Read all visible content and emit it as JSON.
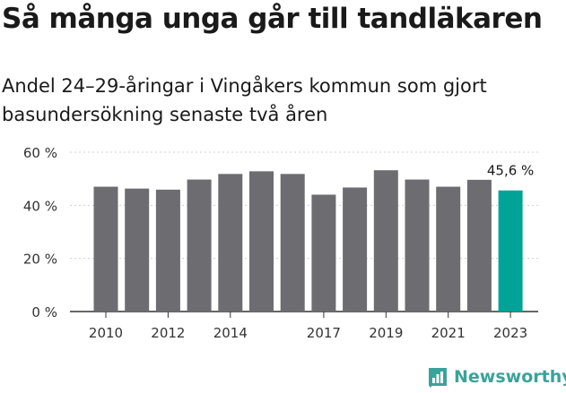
{
  "title": "Så många unga går till tandläkaren",
  "subtitle": "Andel 24–29-åringar i Vingåkers kommun som gjort basundersökning senaste två åren",
  "brand": {
    "name": "Newsworthy",
    "color": "#3aa39b"
  },
  "chart_data": {
    "type": "bar",
    "x": [
      2010,
      2011,
      2012,
      2013,
      2014,
      2015,
      2016,
      2017,
      2018,
      2019,
      2020,
      2021,
      2022,
      2023
    ],
    "values": [
      47.0,
      46.3,
      45.9,
      49.7,
      51.8,
      52.8,
      51.8,
      44.0,
      46.7,
      53.2,
      49.7,
      47.0,
      49.6,
      45.6
    ],
    "x_tick_labels": [
      "2010",
      "2012",
      "2014",
      "2017",
      "2019",
      "2021",
      "2023"
    ],
    "x_tick_values": [
      2010,
      2012,
      2014,
      2017,
      2019,
      2021,
      2023
    ],
    "y_ticks": [
      0,
      20,
      40,
      60
    ],
    "y_tick_labels": [
      "0 %",
      "20 %",
      "40 %",
      "60 %"
    ],
    "ylim": [
      0,
      60
    ],
    "highlight_label": "45,6 %",
    "grid": true,
    "colors": {
      "bar": "#6d6c70",
      "highlight": "#00a497",
      "grid": "#cfcfcf",
      "axis": "#333333"
    }
  }
}
